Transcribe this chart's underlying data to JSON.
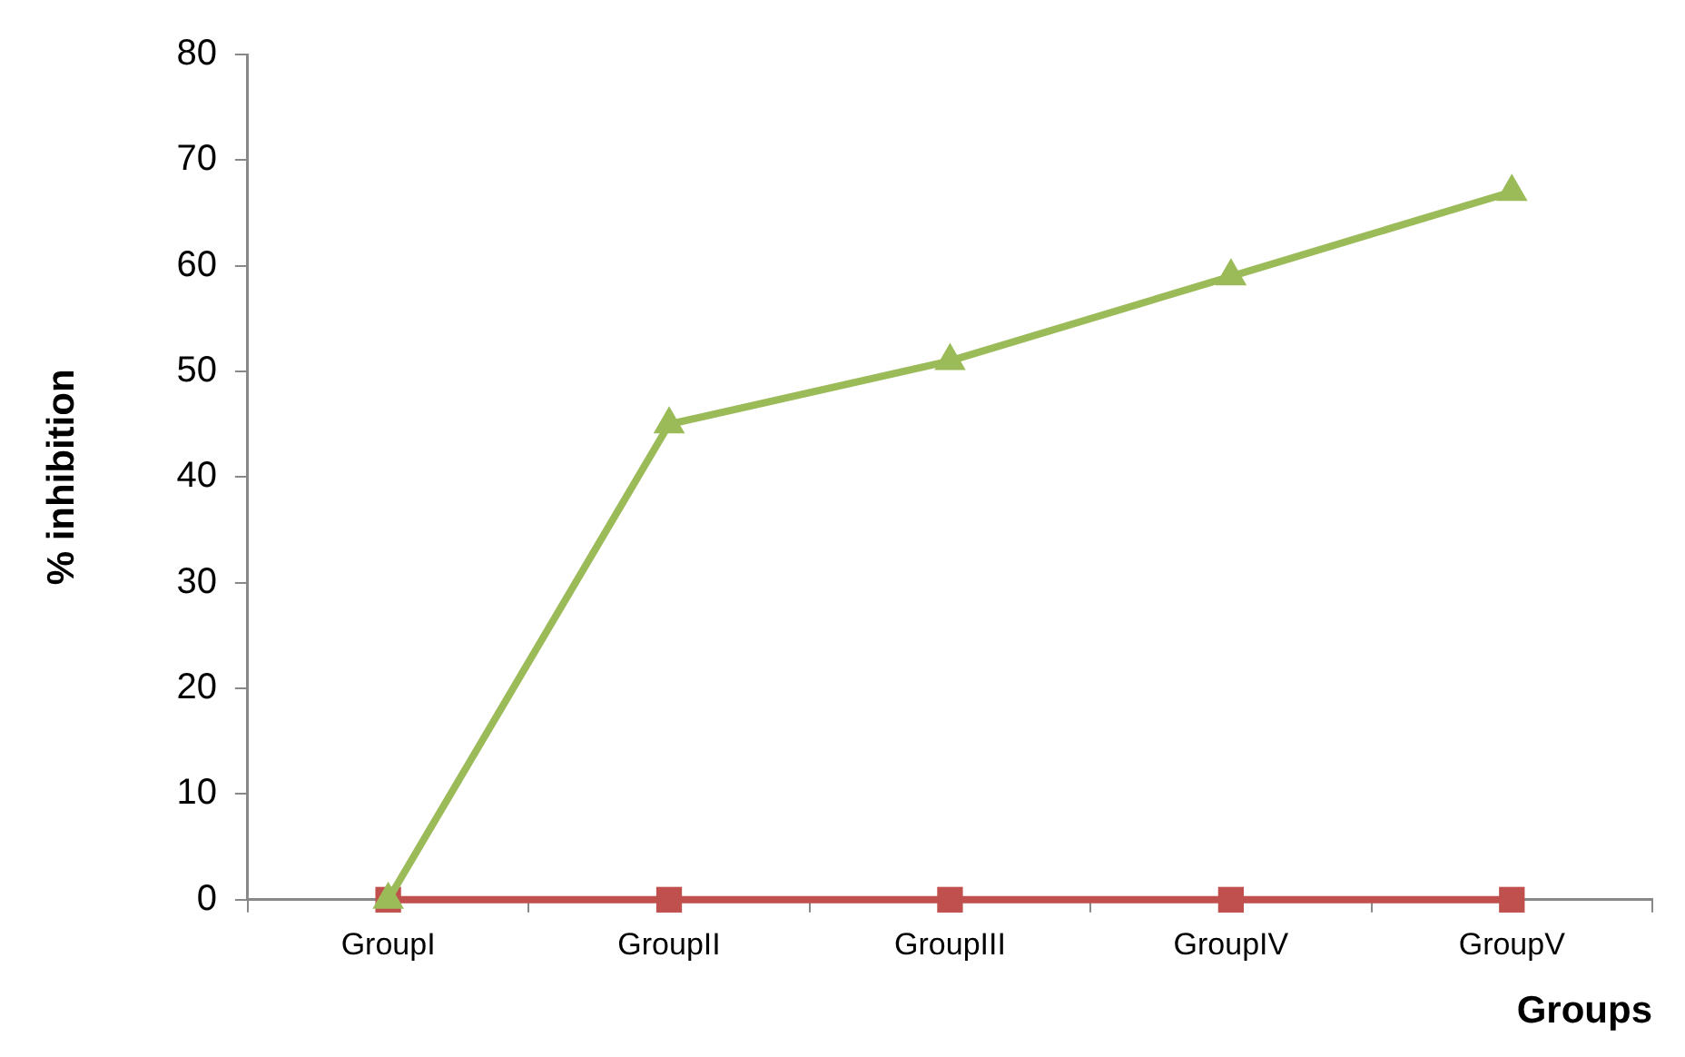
{
  "chart_data": {
    "type": "line",
    "xlabel": "Groups",
    "ylabel": "% inhibition",
    "categories": [
      "GroupI",
      "GroupII",
      "GroupIII",
      "GroupIV",
      "GroupV"
    ],
    "series": [
      {
        "color": "#9bbb59",
        "marker": "triangle",
        "values": [
          0,
          45,
          51,
          59,
          67
        ]
      },
      {
        "color": "#c0504d",
        "marker": "square",
        "values": [
          0,
          0,
          0,
          0,
          0
        ]
      }
    ],
    "ylim": [
      0,
      80
    ],
    "yticks": [
      0,
      10,
      20,
      30,
      40,
      50,
      60,
      70,
      80
    ],
    "grid": false,
    "legend": false,
    "line_style": "solid"
  }
}
